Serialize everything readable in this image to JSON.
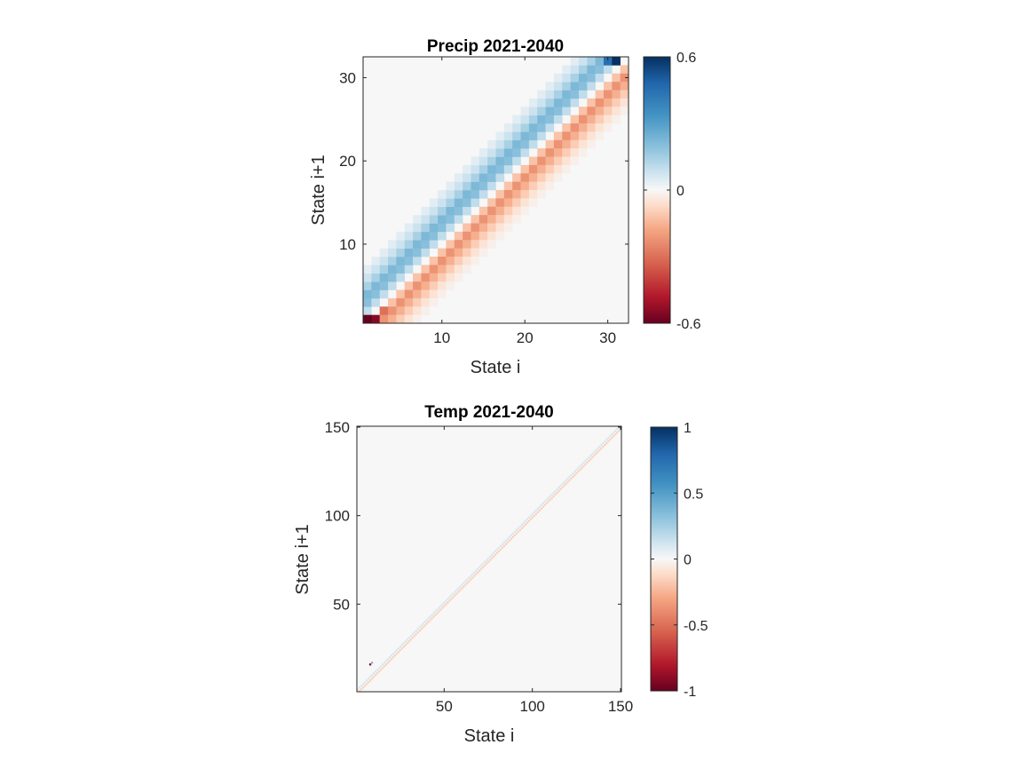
{
  "chart_data": [
    {
      "type": "heatmap",
      "title": "Precip 2021-2040",
      "xlabel": "State i",
      "ylabel": "State i+1",
      "n": 32,
      "xticks": [
        10,
        20,
        30
      ],
      "yticks": [
        10,
        20,
        30
      ],
      "clim": [
        -0.6,
        0.6
      ],
      "colorbar_ticks": [
        -0.6,
        0,
        0.6
      ],
      "colorbar_labels": [
        "-0.6",
        "0",
        "0.6"
      ],
      "pattern": {
        "diagonal_value": 0.0,
        "above_diagonal": [
          0.1,
          0.2,
          0.22,
          0.14,
          0.08,
          0.04
        ],
        "below_diagonal": [
          -0.12,
          -0.22,
          -0.16,
          -0.1,
          -0.05,
          -0.02
        ],
        "special_cells": [
          {
            "i": 1,
            "j": 1,
            "value": -0.6
          },
          {
            "i": 2,
            "j": 1,
            "value": -0.55
          },
          {
            "i": 3,
            "j": 2,
            "value": -0.3
          },
          {
            "i": 31,
            "j": 32,
            "value": 0.6
          },
          {
            "i": 30,
            "j": 32,
            "value": 0.45
          }
        ]
      }
    },
    {
      "type": "heatmap",
      "title": "Temp 2021-2040",
      "xlabel": "State i",
      "ylabel": "State i+1",
      "n": 150,
      "xticks": [
        50,
        100,
        150
      ],
      "yticks": [
        50,
        100,
        150
      ],
      "clim": [
        -1,
        1
      ],
      "colorbar_ticks": [
        -1,
        -0.5,
        0,
        0.5,
        1
      ],
      "colorbar_labels": [
        "-1",
        "-0.5",
        "0",
        "0.5",
        "1"
      ],
      "pattern": {
        "above_diagonal": [
          0.1
        ],
        "below_diagonal": [
          -0.15
        ],
        "special_cells": [
          {
            "i": 8,
            "j": 16,
            "value": -0.9
          },
          {
            "i": 9,
            "j": 17,
            "value": 0.4
          }
        ]
      }
    }
  ]
}
